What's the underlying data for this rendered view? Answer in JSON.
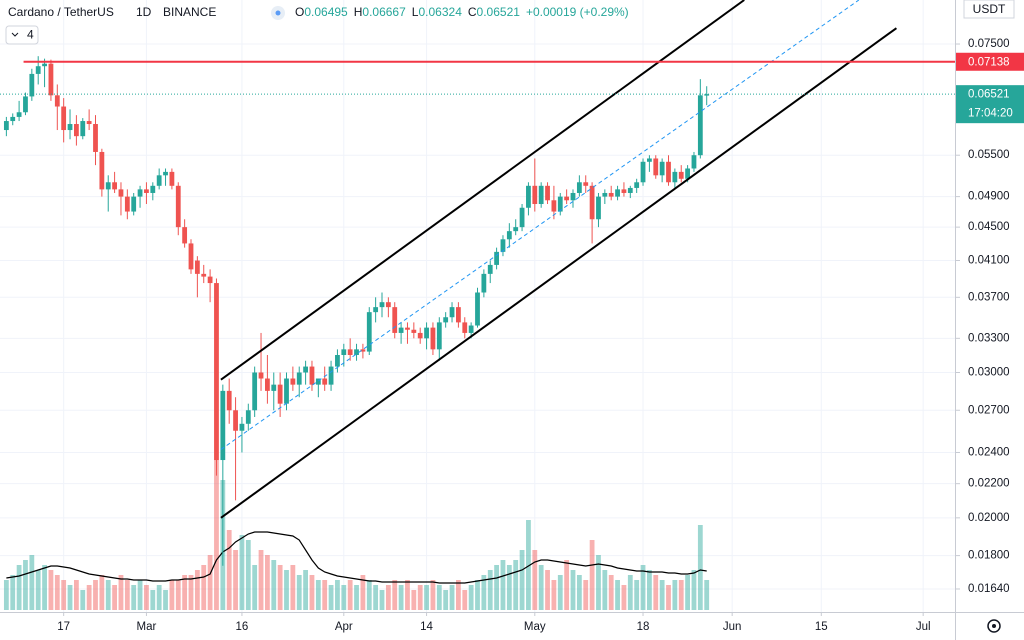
{
  "chart_data": {
    "type": "candlestick",
    "title": "Cardano / TetherUS",
    "interval": "1D",
    "exchange": "BINANCE",
    "ohlc_prefixes": [
      "O",
      "H",
      "L",
      "C"
    ],
    "change": "+0.00019 (+0.29%)",
    "indicator_count": "4",
    "currency": "USDT",
    "countdown": "17:04:20",
    "log_scale": true,
    "grid": true,
    "up_color": "#26a69a",
    "down_color": "#ef5350",
    "xlim": [
      0,
      150
    ],
    "xticks": [
      {
        "value": 10,
        "label": "17"
      },
      {
        "value": 23,
        "label": "Mar"
      },
      {
        "value": 38,
        "label": "16"
      },
      {
        "value": 54,
        "label": "Apr"
      },
      {
        "value": 67,
        "label": "14"
      },
      {
        "value": 84,
        "label": "May"
      },
      {
        "value": 101,
        "label": "18"
      },
      {
        "value": 115,
        "label": "Jun"
      },
      {
        "value": 129,
        "label": "15"
      },
      {
        "value": 145,
        "label": "Jul"
      }
    ],
    "ylim": [
      0.01538,
      0.0848
    ],
    "yticks": [
      {
        "value": 0.075,
        "label": "0.07500"
      },
      {
        "value": 0.055,
        "label": "0.05500"
      },
      {
        "value": 0.049,
        "label": "0.04900"
      },
      {
        "value": 0.045,
        "label": "0.04500"
      },
      {
        "value": 0.041,
        "label": "0.04100"
      },
      {
        "value": 0.037,
        "label": "0.03700"
      },
      {
        "value": 0.033,
        "label": "0.03300"
      },
      {
        "value": 0.03,
        "label": "0.03000"
      },
      {
        "value": 0.027,
        "label": "0.02700"
      },
      {
        "value": 0.024,
        "label": "0.02400"
      },
      {
        "value": 0.022,
        "label": "0.02200"
      },
      {
        "value": 0.02,
        "label": "0.02000"
      },
      {
        "value": 0.018,
        "label": "0.01800"
      },
      {
        "value": 0.0164,
        "label": "0.01640"
      }
    ],
    "volume_ylim": [
      0,
      300
    ],
    "x": [
      1,
      2,
      3,
      4,
      5,
      6,
      7,
      8,
      9,
      10,
      11,
      12,
      13,
      14,
      15,
      16,
      17,
      18,
      19,
      20,
      21,
      22,
      23,
      24,
      25,
      26,
      27,
      28,
      29,
      30,
      31,
      32,
      33,
      34,
      35,
      36,
      37,
      38,
      39,
      40,
      41,
      42,
      43,
      44,
      45,
      46,
      47,
      48,
      49,
      50,
      51,
      52,
      53,
      54,
      55,
      56,
      57,
      58,
      59,
      60,
      61,
      62,
      63,
      64,
      65,
      66,
      67,
      68,
      69,
      70,
      71,
      72,
      73,
      74,
      75,
      76,
      77,
      78,
      79,
      80,
      81,
      82,
      83,
      84,
      85,
      86,
      87,
      88,
      89,
      90,
      91,
      92,
      93,
      94,
      95,
      96,
      97,
      98,
      99,
      100,
      101,
      102,
      103,
      104,
      105,
      106,
      107,
      108,
      109,
      110,
      111
    ],
    "candles": [
      [
        0.059,
        0.0612,
        0.058,
        0.0605
      ],
      [
        0.0605,
        0.0618,
        0.0598,
        0.0612
      ],
      [
        0.0612,
        0.064,
        0.0605,
        0.062
      ],
      [
        0.062,
        0.0655,
        0.0615,
        0.0648
      ],
      [
        0.0648,
        0.07,
        0.064,
        0.069
      ],
      [
        0.069,
        0.0725,
        0.067,
        0.0705
      ],
      [
        0.0705,
        0.072,
        0.0665,
        0.071
      ],
      [
        0.071,
        0.0718,
        0.064,
        0.065
      ],
      [
        0.065,
        0.067,
        0.059,
        0.063
      ],
      [
        0.063,
        0.0645,
        0.057,
        0.059
      ],
      [
        0.059,
        0.0625,
        0.0575,
        0.06
      ],
      [
        0.06,
        0.0615,
        0.0565,
        0.058
      ],
      [
        0.058,
        0.061,
        0.0575,
        0.0605
      ],
      [
        0.0605,
        0.0625,
        0.059,
        0.06
      ],
      [
        0.06,
        0.0615,
        0.0535,
        0.0555
      ],
      [
        0.0555,
        0.056,
        0.049,
        0.05
      ],
      [
        0.05,
        0.052,
        0.047,
        0.051
      ],
      [
        0.051,
        0.0525,
        0.0495,
        0.05
      ],
      [
        0.05,
        0.051,
        0.0465,
        0.049
      ],
      [
        0.049,
        0.05,
        0.046,
        0.047
      ],
      [
        0.047,
        0.0495,
        0.0465,
        0.049
      ],
      [
        0.049,
        0.0505,
        0.0475,
        0.05
      ],
      [
        0.05,
        0.051,
        0.048,
        0.0495
      ],
      [
        0.0495,
        0.051,
        0.0485,
        0.0505
      ],
      [
        0.0505,
        0.053,
        0.05,
        0.052
      ],
      [
        0.052,
        0.053,
        0.0505,
        0.0525
      ],
      [
        0.0525,
        0.053,
        0.05,
        0.0505
      ],
      [
        0.0505,
        0.051,
        0.044,
        0.045
      ],
      [
        0.045,
        0.046,
        0.0425,
        0.043
      ],
      [
        0.043,
        0.0435,
        0.0395,
        0.04
      ],
      [
        0.041,
        0.0415,
        0.037,
        0.0395
      ],
      [
        0.0395,
        0.0405,
        0.0385,
        0.0392
      ],
      [
        0.0392,
        0.04,
        0.0365,
        0.0385
      ],
      [
        0.0385,
        0.039,
        0.0225,
        0.0235
      ],
      [
        0.0235,
        0.029,
        0.0175,
        0.0285
      ],
      [
        0.0285,
        0.0295,
        0.026,
        0.027
      ],
      [
        0.027,
        0.028,
        0.021,
        0.0255
      ],
      [
        0.0255,
        0.0265,
        0.024,
        0.026
      ],
      [
        0.026,
        0.0275,
        0.0255,
        0.027
      ],
      [
        0.027,
        0.0305,
        0.0265,
        0.03
      ],
      [
        0.03,
        0.0335,
        0.0285,
        0.0295
      ],
      [
        0.0295,
        0.0315,
        0.0275,
        0.0285
      ],
      [
        0.0285,
        0.03,
        0.027,
        0.029
      ],
      [
        0.029,
        0.03,
        0.0265,
        0.0275
      ],
      [
        0.0275,
        0.03,
        0.027,
        0.0295
      ],
      [
        0.0295,
        0.0305,
        0.0285,
        0.029
      ],
      [
        0.029,
        0.0305,
        0.028,
        0.03
      ],
      [
        0.03,
        0.031,
        0.029,
        0.0305
      ],
      [
        0.0305,
        0.031,
        0.0285,
        0.029
      ],
      [
        0.029,
        0.0295,
        0.028,
        0.0295
      ],
      [
        0.0295,
        0.0305,
        0.0285,
        0.029
      ],
      [
        0.029,
        0.031,
        0.0285,
        0.0305
      ],
      [
        0.0305,
        0.032,
        0.03,
        0.0315
      ],
      [
        0.0315,
        0.0325,
        0.0305,
        0.032
      ],
      [
        0.032,
        0.033,
        0.031,
        0.0315
      ],
      [
        0.0315,
        0.0325,
        0.031,
        0.032
      ],
      [
        0.032,
        0.0325,
        0.0312,
        0.0318
      ],
      [
        0.0318,
        0.036,
        0.0315,
        0.0355
      ],
      [
        0.0355,
        0.037,
        0.0345,
        0.036
      ],
      [
        0.036,
        0.0375,
        0.035,
        0.0365
      ],
      [
        0.0365,
        0.037,
        0.035,
        0.036
      ],
      [
        0.036,
        0.0365,
        0.033,
        0.0335
      ],
      [
        0.0335,
        0.0345,
        0.0325,
        0.034
      ],
      [
        0.034,
        0.0345,
        0.0325,
        0.0338
      ],
      [
        0.0338,
        0.0345,
        0.033,
        0.0335
      ],
      [
        0.0335,
        0.034,
        0.0325,
        0.033
      ],
      [
        0.033,
        0.0345,
        0.032,
        0.034
      ],
      [
        0.034,
        0.0345,
        0.0315,
        0.032
      ],
      [
        0.032,
        0.035,
        0.031,
        0.0345
      ],
      [
        0.0345,
        0.0355,
        0.034,
        0.035
      ],
      [
        0.035,
        0.0365,
        0.0345,
        0.036
      ],
      [
        0.036,
        0.0365,
        0.034,
        0.0345
      ],
      [
        0.0345,
        0.035,
        0.033,
        0.0335
      ],
      [
        0.0335,
        0.0345,
        0.033,
        0.0342
      ],
      [
        0.0342,
        0.038,
        0.034,
        0.0375
      ],
      [
        0.0375,
        0.04,
        0.037,
        0.0395
      ],
      [
        0.0395,
        0.041,
        0.0385,
        0.0405
      ],
      [
        0.0405,
        0.0425,
        0.04,
        0.042
      ],
      [
        0.042,
        0.044,
        0.0415,
        0.0435
      ],
      [
        0.0435,
        0.0455,
        0.0425,
        0.0445
      ],
      [
        0.0445,
        0.046,
        0.044,
        0.045
      ],
      [
        0.045,
        0.048,
        0.0445,
        0.0475
      ],
      [
        0.0475,
        0.051,
        0.0465,
        0.0505
      ],
      [
        0.0505,
        0.0545,
        0.047,
        0.048
      ],
      [
        0.048,
        0.051,
        0.0475,
        0.0505
      ],
      [
        0.0505,
        0.051,
        0.048,
        0.0485
      ],
      [
        0.0485,
        0.0505,
        0.046,
        0.047
      ],
      [
        0.047,
        0.0495,
        0.0465,
        0.049
      ],
      [
        0.049,
        0.05,
        0.048,
        0.0485
      ],
      [
        0.0485,
        0.05,
        0.0475,
        0.0495
      ],
      [
        0.0495,
        0.052,
        0.049,
        0.051
      ],
      [
        0.051,
        0.052,
        0.0495,
        0.0505
      ],
      [
        0.0505,
        0.051,
        0.043,
        0.046
      ],
      [
        0.046,
        0.0495,
        0.045,
        0.049
      ],
      [
        0.049,
        0.05,
        0.048,
        0.0495
      ],
      [
        0.0495,
        0.0505,
        0.0485,
        0.049
      ],
      [
        0.049,
        0.0505,
        0.0485,
        0.05
      ],
      [
        0.05,
        0.051,
        0.049,
        0.0495
      ],
      [
        0.0495,
        0.0505,
        0.0488,
        0.0502
      ],
      [
        0.0502,
        0.0515,
        0.0495,
        0.051
      ],
      [
        0.051,
        0.0545,
        0.0505,
        0.054
      ],
      [
        0.054,
        0.055,
        0.0525,
        0.0545
      ],
      [
        0.0545,
        0.055,
        0.0515,
        0.052
      ],
      [
        0.052,
        0.0545,
        0.051,
        0.054
      ],
      [
        0.054,
        0.055,
        0.0505,
        0.051
      ],
      [
        0.051,
        0.053,
        0.05,
        0.0525
      ],
      [
        0.0525,
        0.0535,
        0.051,
        0.0515
      ],
      [
        0.0515,
        0.0535,
        0.051,
        0.053
      ],
      [
        0.053,
        0.0555,
        0.0525,
        0.055
      ],
      [
        0.055,
        0.068,
        0.0545,
        0.065
      ],
      [
        0.06495,
        0.06667,
        0.06324,
        0.06521
      ]
    ],
    "volume": [
      30,
      35,
      45,
      50,
      55,
      40,
      45,
      40,
      35,
      30,
      25,
      30,
      20,
      25,
      30,
      35,
      30,
      25,
      35,
      30,
      25,
      30,
      25,
      20,
      25,
      20,
      30,
      30,
      35,
      35,
      40,
      45,
      55,
      150,
      130,
      80,
      60,
      75,
      70,
      45,
      60,
      55,
      50,
      45,
      40,
      45,
      35,
      40,
      35,
      30,
      30,
      25,
      30,
      25,
      30,
      25,
      35,
      30,
      25,
      20,
      25,
      30,
      25,
      30,
      20,
      25,
      25,
      30,
      25,
      20,
      25,
      30,
      20,
      25,
      30,
      35,
      40,
      45,
      50,
      45,
      50,
      60,
      90,
      60,
      45,
      40,
      30,
      35,
      50,
      40,
      35,
      30,
      70,
      55,
      40,
      35,
      30,
      25,
      35,
      30,
      45,
      40,
      35,
      30,
      25,
      30,
      30,
      35,
      40,
      85,
      30
    ],
    "volume_ma": [
      32,
      33,
      34,
      36,
      38,
      40,
      42,
      44,
      44,
      43,
      42,
      40,
      38,
      36,
      35,
      34,
      33,
      32,
      31,
      31,
      30,
      30,
      30,
      29,
      29,
      29,
      30,
      30,
      31,
      31,
      32,
      33,
      36,
      50,
      58,
      62,
      68,
      72,
      76,
      78,
      78,
      78,
      77,
      76,
      75,
      74,
      70,
      60,
      50,
      42,
      38,
      36,
      34,
      33,
      32,
      31,
      30,
      29,
      29,
      28,
      28,
      28,
      28,
      28,
      28,
      28,
      28,
      28,
      27,
      27,
      27,
      27,
      27,
      28,
      29,
      30,
      31,
      32,
      34,
      36,
      38,
      40,
      44,
      48,
      50,
      50,
      49,
      48,
      47,
      46,
      45,
      44,
      45,
      46,
      45,
      44,
      42,
      41,
      40,
      39,
      39,
      38,
      38,
      38,
      37,
      37,
      36,
      36,
      37,
      40,
      39
    ],
    "resistance": {
      "value": 0.07138,
      "start_x": 3.7,
      "color": "#f23645"
    },
    "trendlines": [
      {
        "x": [
          34.7,
          116.9
        ],
        "y": [
          0.0294,
          0.0848
        ],
        "color": "#000000",
        "dashed": false
      },
      {
        "x": [
          34.7,
          140.8
        ],
        "y": [
          0.02,
          0.0784
        ],
        "color": "#000000",
        "dashed": false
      },
      {
        "x": [
          34.7,
          134.9
        ],
        "y": [
          0.0242,
          0.0848
        ],
        "color": "#2196f3",
        "dashed": true
      }
    ]
  }
}
